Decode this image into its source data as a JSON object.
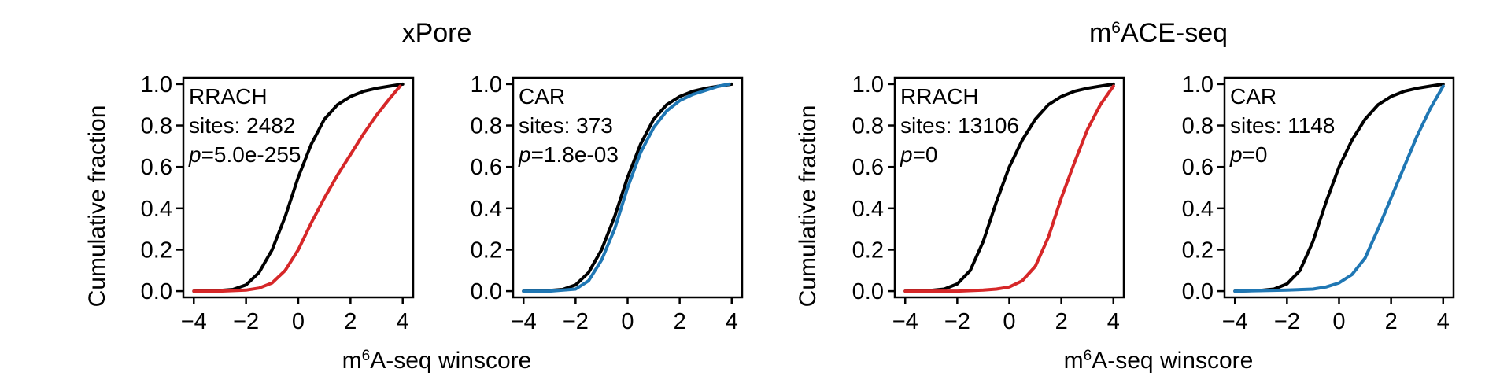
{
  "figure": {
    "group_titles": [
      {
        "base": "xPore",
        "sup": "",
        "rest": ""
      },
      {
        "base": "m",
        "sup": "6",
        "rest": "ACE-seq"
      }
    ],
    "ylabel": "Cumulative fraction",
    "xlabel": {
      "base": "m",
      "sup": "6",
      "rest": "A-seq winscore"
    }
  },
  "colors": {
    "reference": "#000000",
    "rrach": "#d62728",
    "car": "#1f77b4"
  },
  "chart_data": [
    {
      "type": "line",
      "group": "xPore",
      "motif": "RRACH",
      "sites_text": "sites: 2482",
      "p_value": "5.0e-255",
      "xlim": [
        -4.4,
        4.4
      ],
      "ylim": [
        -0.03,
        1.03
      ],
      "xticks": [
        -4,
        -2,
        0,
        2,
        4
      ],
      "yticks": [
        0.0,
        0.2,
        0.4,
        0.6,
        0.8,
        1.0
      ],
      "series": [
        {
          "color": "#000000",
          "x": [
            -4,
            -3,
            -2.5,
            -2,
            -1.5,
            -1,
            -0.5,
            0,
            0.5,
            1,
            1.5,
            2,
            2.5,
            3,
            3.5,
            4
          ],
          "y": [
            0,
            0.003,
            0.008,
            0.03,
            0.09,
            0.2,
            0.36,
            0.55,
            0.71,
            0.83,
            0.9,
            0.94,
            0.965,
            0.98,
            0.99,
            1.0
          ]
        },
        {
          "color": "#d62728",
          "x": [
            -4,
            -3,
            -2,
            -1.5,
            -1,
            -0.5,
            0,
            0.5,
            1,
            1.5,
            2,
            2.5,
            3,
            3.5,
            3.9
          ],
          "y": [
            0,
            0,
            0.005,
            0.015,
            0.04,
            0.1,
            0.2,
            0.33,
            0.45,
            0.56,
            0.66,
            0.76,
            0.85,
            0.93,
            0.99
          ]
        }
      ]
    },
    {
      "type": "line",
      "group": "xPore",
      "motif": "CAR",
      "sites_text": "sites: 373",
      "p_value": "1.8e-03",
      "xlim": [
        -4.4,
        4.4
      ],
      "ylim": [
        -0.03,
        1.03
      ],
      "xticks": [
        -4,
        -2,
        0,
        2,
        4
      ],
      "yticks": [
        0.0,
        0.2,
        0.4,
        0.6,
        0.8,
        1.0
      ],
      "series": [
        {
          "color": "#000000",
          "x": [
            -4,
            -3,
            -2.5,
            -2,
            -1.5,
            -1,
            -0.5,
            0,
            0.5,
            1,
            1.5,
            2,
            2.5,
            3,
            3.5,
            4
          ],
          "y": [
            0,
            0.003,
            0.008,
            0.03,
            0.09,
            0.2,
            0.36,
            0.55,
            0.71,
            0.83,
            0.9,
            0.94,
            0.965,
            0.98,
            0.99,
            1.0
          ]
        },
        {
          "color": "#1f77b4",
          "x": [
            -4,
            -3,
            -2,
            -1.5,
            -1,
            -0.5,
            0,
            0.5,
            1,
            1.5,
            2,
            2.5,
            3,
            3.5,
            3.9
          ],
          "y": [
            0,
            0,
            0.01,
            0.05,
            0.15,
            0.3,
            0.5,
            0.67,
            0.79,
            0.87,
            0.92,
            0.95,
            0.97,
            0.99,
            1.0
          ]
        }
      ]
    },
    {
      "type": "line",
      "group": "m6ACE-seq",
      "motif": "RRACH",
      "sites_text": "sites: 13106",
      "p_value": "0",
      "xlim": [
        -4.4,
        4.4
      ],
      "ylim": [
        -0.03,
        1.03
      ],
      "xticks": [
        -4,
        -2,
        0,
        2,
        4
      ],
      "yticks": [
        0.0,
        0.2,
        0.4,
        0.6,
        0.8,
        1.0
      ],
      "series": [
        {
          "color": "#000000",
          "x": [
            -4,
            -3,
            -2.5,
            -2,
            -1.5,
            -1,
            -0.5,
            0,
            0.5,
            1,
            1.5,
            2,
            2.5,
            3,
            3.5,
            4
          ],
          "y": [
            0,
            0.004,
            0.01,
            0.035,
            0.1,
            0.24,
            0.43,
            0.6,
            0.73,
            0.83,
            0.9,
            0.94,
            0.965,
            0.98,
            0.99,
            1.0
          ]
        },
        {
          "color": "#d62728",
          "x": [
            -4,
            -2,
            -1,
            -0.5,
            0,
            0.5,
            1,
            1.5,
            2,
            2.5,
            3,
            3.5,
            4
          ],
          "y": [
            0,
            0,
            0.005,
            0.01,
            0.02,
            0.05,
            0.12,
            0.26,
            0.45,
            0.62,
            0.78,
            0.9,
            0.99
          ]
        }
      ]
    },
    {
      "type": "line",
      "group": "m6ACE-seq",
      "motif": "CAR",
      "sites_text": "sites: 1148",
      "p_value": "0",
      "xlim": [
        -4.4,
        4.4
      ],
      "ylim": [
        -0.03,
        1.03
      ],
      "xticks": [
        -4,
        -2,
        0,
        2,
        4
      ],
      "yticks": [
        0.0,
        0.2,
        0.4,
        0.6,
        0.8,
        1.0
      ],
      "series": [
        {
          "color": "#000000",
          "x": [
            -4,
            -3,
            -2.5,
            -2,
            -1.5,
            -1,
            -0.5,
            0,
            0.5,
            1,
            1.5,
            2,
            2.5,
            3,
            3.5,
            4
          ],
          "y": [
            0,
            0.004,
            0.01,
            0.035,
            0.1,
            0.24,
            0.43,
            0.6,
            0.73,
            0.83,
            0.9,
            0.94,
            0.965,
            0.98,
            0.99,
            1.0
          ]
        },
        {
          "color": "#1f77b4",
          "x": [
            -4,
            -2,
            -1,
            -0.5,
            0,
            0.5,
            1,
            1.5,
            2,
            2.5,
            3,
            3.5,
            4
          ],
          "y": [
            0,
            0.005,
            0.01,
            0.02,
            0.04,
            0.08,
            0.16,
            0.3,
            0.45,
            0.6,
            0.75,
            0.88,
            0.99
          ]
        }
      ]
    }
  ]
}
